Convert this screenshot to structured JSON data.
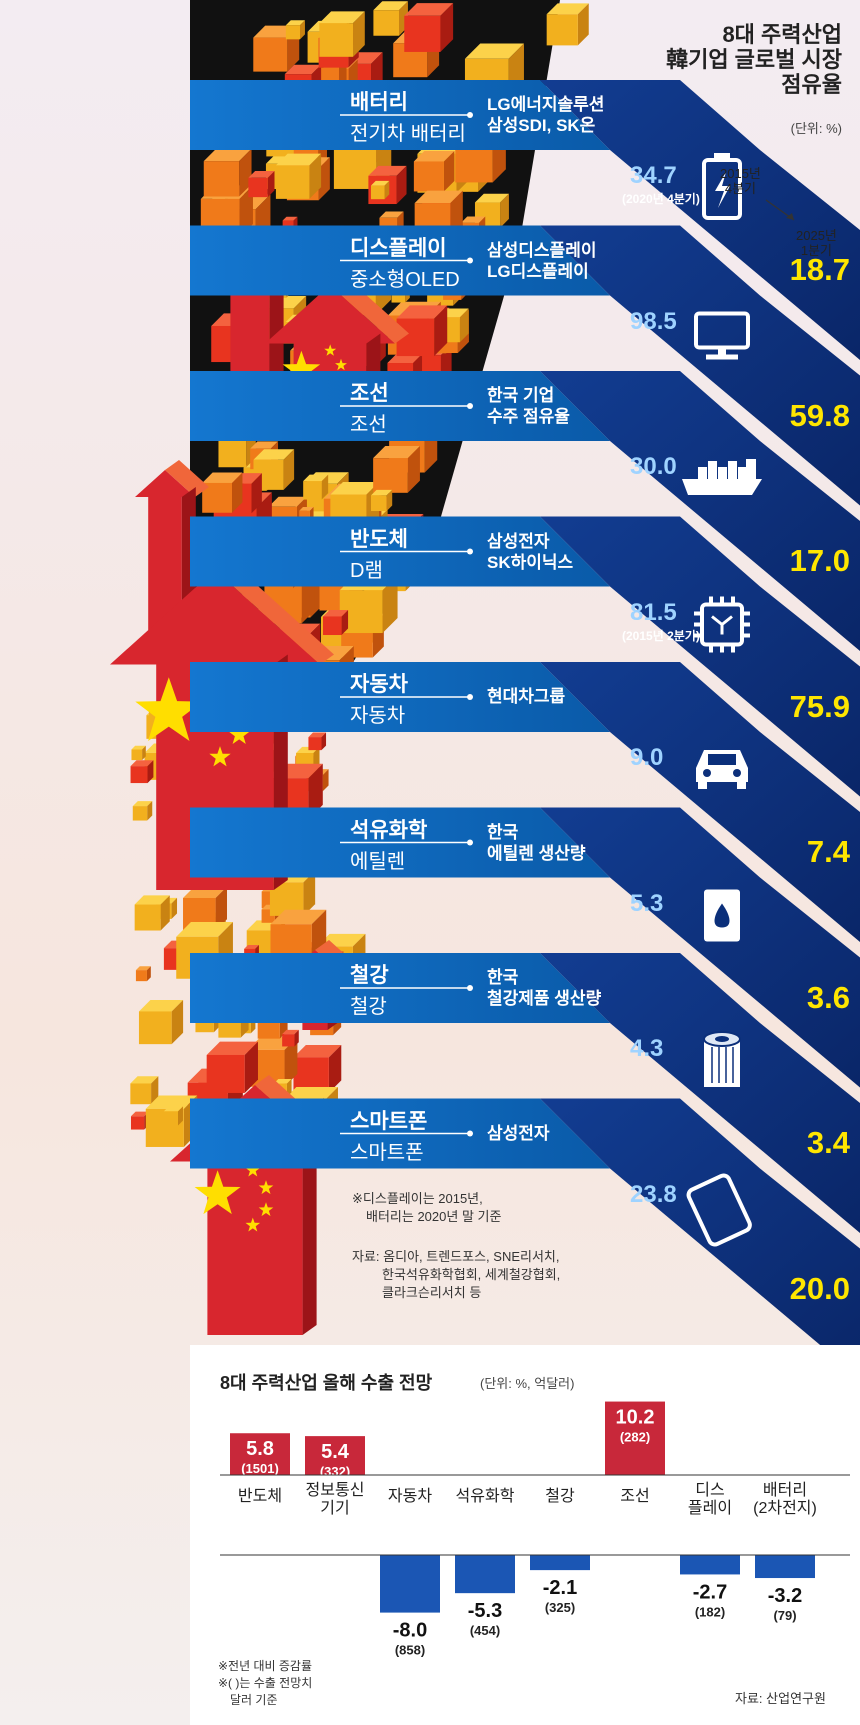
{
  "title": {
    "line1": "8대 주력산업",
    "line2": "韓기업 글로벌 시장",
    "line3": "점유율",
    "unit": "(단위: %)"
  },
  "legend": {
    "from": "2015년\n4분기",
    "to": "2025년\n1분기"
  },
  "chart_data": [
    {
      "type": "bar",
      "title": "8대 주력산업 韓기업 글로벌 시장 점유율",
      "unit": "%",
      "series_labels": [
        "2015년 4분기",
        "2025년 1분기"
      ],
      "industries": [
        {
          "name": "배터리",
          "product": "전기차 배터리",
          "companies": [
            "LG에너지솔루션",
            "삼성SDI, SK온"
          ],
          "v2015": 34.7,
          "v2025": 18.7,
          "note": "(2020년 4분기)",
          "icon": "battery-icon"
        },
        {
          "name": "디스플레이",
          "product": "중소형OLED",
          "companies": [
            "삼성디스플레이",
            "LG디스플레이"
          ],
          "v2015": 98.5,
          "v2025": 59.8,
          "note": "",
          "icon": "monitor-icon"
        },
        {
          "name": "조선",
          "product": "조선",
          "companies": [
            "한국 기업",
            "수주 점유율"
          ],
          "v2015": 30.0,
          "v2025": 17.0,
          "note": "",
          "icon": "ship-icon"
        },
        {
          "name": "반도체",
          "product": "D램",
          "companies": [
            "삼성전자",
            "SK하이닉스"
          ],
          "v2015": 81.5,
          "v2025": 75.9,
          "note": "(2015년 2분기)",
          "icon": "chip-icon"
        },
        {
          "name": "자동차",
          "product": "자동차",
          "companies": [
            "현대차그룹"
          ],
          "v2015": 9.0,
          "v2025": 7.4,
          "note": "",
          "icon": "car-icon"
        },
        {
          "name": "석유화학",
          "product": "에틸렌",
          "companies": [
            "한국",
            "에틸렌 생산량"
          ],
          "v2015": 5.3,
          "v2025": 3.6,
          "note": "",
          "icon": "oil-barrel-icon"
        },
        {
          "name": "철강",
          "product": "철강",
          "companies": [
            "한국",
            "철강제품 생산량"
          ],
          "v2015": 4.3,
          "v2025": 3.4,
          "note": "",
          "icon": "steel-coil-icon"
        },
        {
          "name": "스마트폰",
          "product": "스마트폰",
          "companies": [
            "삼성전자"
          ],
          "v2015": 23.8,
          "v2025": 20.0,
          "note": "",
          "icon": "smartphone-icon"
        }
      ]
    },
    {
      "type": "bar",
      "title": "8대 주력산업 올해 수출 전망",
      "unit": "(단위: %, 억달러)",
      "categories": [
        "반도체",
        "정보통신 기기",
        "자동차",
        "석유화학",
        "철강",
        "조선",
        "디스 플레이",
        "배터리 (2차전지)"
      ],
      "labels_lines": [
        [
          "반도체"
        ],
        [
          "정보통신",
          "기기"
        ],
        [
          "자동차"
        ],
        [
          "석유화학"
        ],
        [
          "철강"
        ],
        [
          "조선"
        ],
        [
          "디스",
          "플레이"
        ],
        [
          "배터리",
          "(2차전지)"
        ]
      ],
      "values": [
        5.8,
        5.4,
        -8.0,
        -5.3,
        -2.1,
        10.2,
        -2.7,
        -3.2
      ],
      "export_amount": [
        1501,
        332,
        858,
        454,
        325,
        282,
        182,
        79
      ]
    }
  ],
  "notes": {
    "n1": "※디스플레이는 2015년,",
    "n2": "배터리는 2020년 말 기준",
    "src1": "자료: 옴디아, 트렌드포스, SNE리서치,",
    "src2": "한국석유화학협회, 세계철강협회,",
    "src3": "클라크슨리서치 등",
    "b1": "※전년 대비 증감률",
    "b2": "※( )는 수출 전망치",
    "b3": "달러 기준",
    "source": "자료: 산업연구원"
  },
  "colors": {
    "red": "#d8262e",
    "blue": "#0f6bbd",
    "navy": "#0b2f7a",
    "yellow": "#ffe600",
    "barRed": "#c8283a",
    "barBlue": "#1b56b4"
  }
}
